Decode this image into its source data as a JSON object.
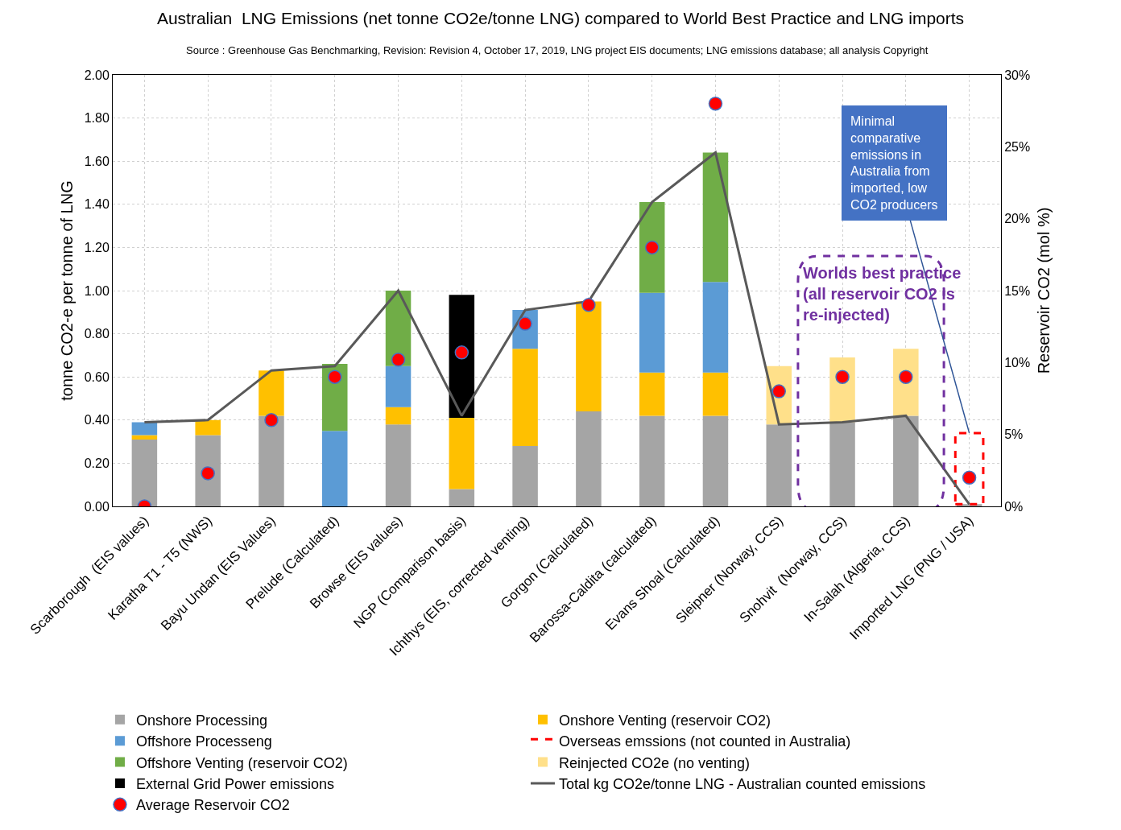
{
  "chart_data": {
    "type": "bar",
    "stacked": true,
    "title": "Australian  LNG Emissions (net tonne CO2e/tonne LNG) compared to World Best Practice and LNG imports",
    "ylabel": "tonne CO2-e per tonne of LNG",
    "y2label": "Reservoir CO2 (mol %)",
    "annotations": [
      "Source : Greenhouse Gas Benchmarking, Revision: Revision 4, October 17, 2019, LNG project EIS documents; LNG emissions database; all analysis Copyright",
      {
        "text": "Minimal comparative emissions in Australia from imported, low CO2 producers",
        "x": "Imported LNG (PNG / USA)",
        "y": 0.34
      },
      "Worlds best practice (all reservoir CO2 is re-injected)"
    ],
    "categories": [
      "Scarborough  (EIS values)",
      "Karatha T1 - T5 (NWS)",
      "Bayu Undan (EIS Values)",
      "Prelude (Calculated)",
      "Browse (EIS values)",
      "NGP (Comparison basis)",
      "Ichthys (EIS, corrected venting)",
      "Gorgon (Calculated)",
      "Barossa-Caldita (calculated)",
      "Evans Shoal (Calculated)",
      "Sleipner (Norway, CCS)",
      "Snohvit  (Norway, CCS)",
      "In-Salah (Algeria, CCS)",
      "Imported LNG (PNG / USA)"
    ],
    "series": [
      {
        "name": "Onshore Processing",
        "color": "#a5a5a5",
        "values": [
          0.31,
          0.33,
          0.42,
          null,
          0.38,
          0.08,
          0.28,
          0.44,
          0.42,
          0.42,
          0.38,
          0.39,
          0.42,
          0.01
        ]
      },
      {
        "name": "Onshore Venting (reservoir CO2)",
        "color": "#ffc000",
        "values": [
          0.02,
          0.07,
          0.21,
          null,
          0.08,
          0.33,
          0.45,
          0.51,
          0.2,
          0.2,
          null,
          null,
          null,
          null
        ]
      },
      {
        "name": "Offshore Processeng",
        "color": "#5b9bd5",
        "values": [
          0.06,
          null,
          null,
          0.35,
          0.19,
          null,
          0.18,
          null,
          0.37,
          0.42,
          null,
          null,
          null,
          null
        ]
      },
      {
        "name": "Overseas emssions (not counted in Australia)",
        "color": "#ff0000",
        "line_style": "dashed",
        "values": [
          null,
          null,
          null,
          null,
          null,
          null,
          null,
          null,
          null,
          null,
          null,
          null,
          null,
          0.33
        ]
      },
      {
        "name": "Offshore Venting (reservoir CO2)",
        "color": "#70ad47",
        "values": [
          null,
          null,
          null,
          0.31,
          0.35,
          null,
          null,
          null,
          0.42,
          0.6,
          null,
          null,
          null,
          null
        ]
      },
      {
        "name": "Reinjected CO2e (no venting)",
        "color": "#ffe08a",
        "values": [
          null,
          null,
          null,
          null,
          null,
          null,
          null,
          null,
          null,
          null,
          0.27,
          0.3,
          0.31,
          null
        ]
      },
      {
        "name": "External Grid Power emissions",
        "color": "#000000",
        "values": [
          null,
          null,
          null,
          null,
          null,
          0.57,
          null,
          null,
          null,
          null,
          null,
          null,
          null,
          null
        ]
      },
      {
        "name": "Total kg CO2e/tonne LNG - Australian counted emissions",
        "type": "line",
        "color": "#595959",
        "marker": "none",
        "values": [
          0.39,
          0.4,
          0.63,
          0.65,
          1.0,
          0.42,
          0.91,
          0.95,
          1.41,
          1.64,
          0.38,
          0.39,
          0.42,
          0.01
        ]
      },
      {
        "name": "Average Reservoir CO2",
        "type": "scatter",
        "axis": "y2",
        "color": "#ff0000",
        "marker": "circle",
        "values": [
          0,
          2.3,
          6,
          9,
          10.2,
          10.7,
          12.7,
          14,
          18,
          28,
          8,
          9,
          9,
          2
        ]
      }
    ],
    "ylim": [
      0,
      2
    ],
    "yticks": [
      {
        "value": 0,
        "label": "0.00"
      },
      {
        "value": 0.2,
        "label": "0.20"
      },
      {
        "value": 0.4,
        "label": "0.40"
      },
      {
        "value": 0.6,
        "label": "0.60"
      },
      {
        "value": 0.8,
        "label": "0.80"
      },
      {
        "value": 1,
        "label": "1.00"
      },
      {
        "value": 1.2,
        "label": "1.20"
      },
      {
        "value": 1.4,
        "label": "1.40"
      },
      {
        "value": 1.6,
        "label": "1.60"
      },
      {
        "value": 1.8,
        "label": "1.80"
      },
      {
        "value": 2,
        "label": "2.00"
      }
    ],
    "y2lim": [
      0,
      30
    ],
    "y2ticks": [
      {
        "value": 0,
        "label": "0%"
      },
      {
        "value": 5,
        "label": "5%"
      },
      {
        "value": 10,
        "label": "10%"
      },
      {
        "value": 15,
        "label": "15%"
      },
      {
        "value": 20,
        "label": "20%"
      },
      {
        "value": 25,
        "label": "25%"
      },
      {
        "value": 30,
        "label": "30%"
      }
    ],
    "grid": true,
    "legend": "bottom"
  }
}
